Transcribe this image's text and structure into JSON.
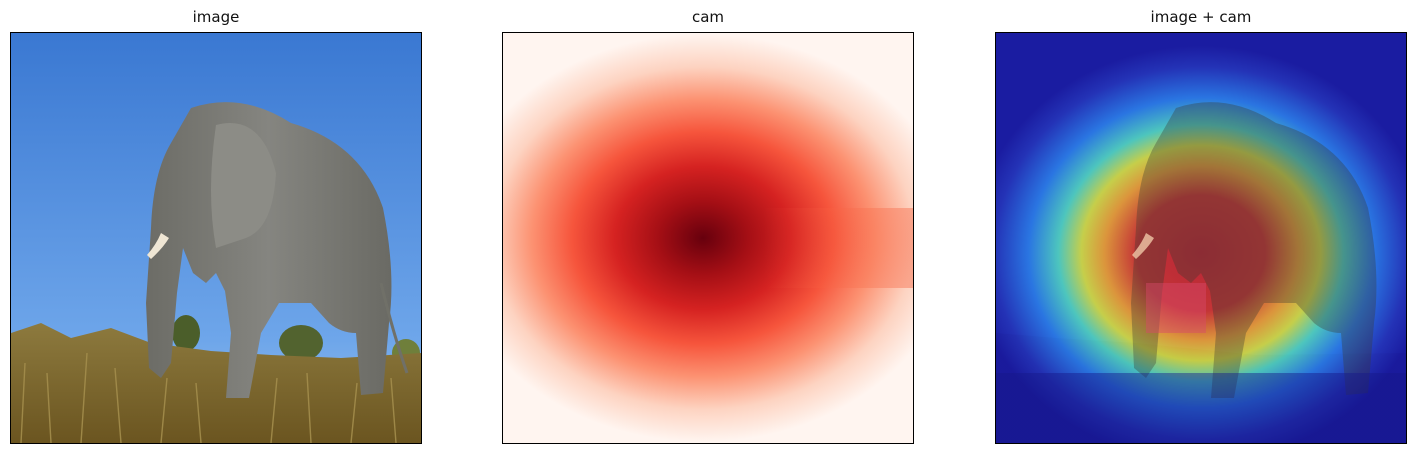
{
  "panels": [
    {
      "title": "image",
      "content": "photo of an elephant standing in tall dry grass under a blue sky"
    },
    {
      "title": "cam",
      "content": "class activation map heatmap, red colormap, peak centered on elephant head and trunk"
    },
    {
      "title": "image + cam",
      "content": "photo overlaid with jet-colormap activation heatmap"
    }
  ],
  "colors": {
    "sky_top": "#3f7fd6",
    "sky_bottom": "#7fb2ee",
    "grass": "#8a7433",
    "elephant": "#7b7b74",
    "cam_low": "#fff5f0",
    "cam_high": "#67000d",
    "jet_low": "#1a1aa8",
    "jet_high": "#d2271f"
  }
}
